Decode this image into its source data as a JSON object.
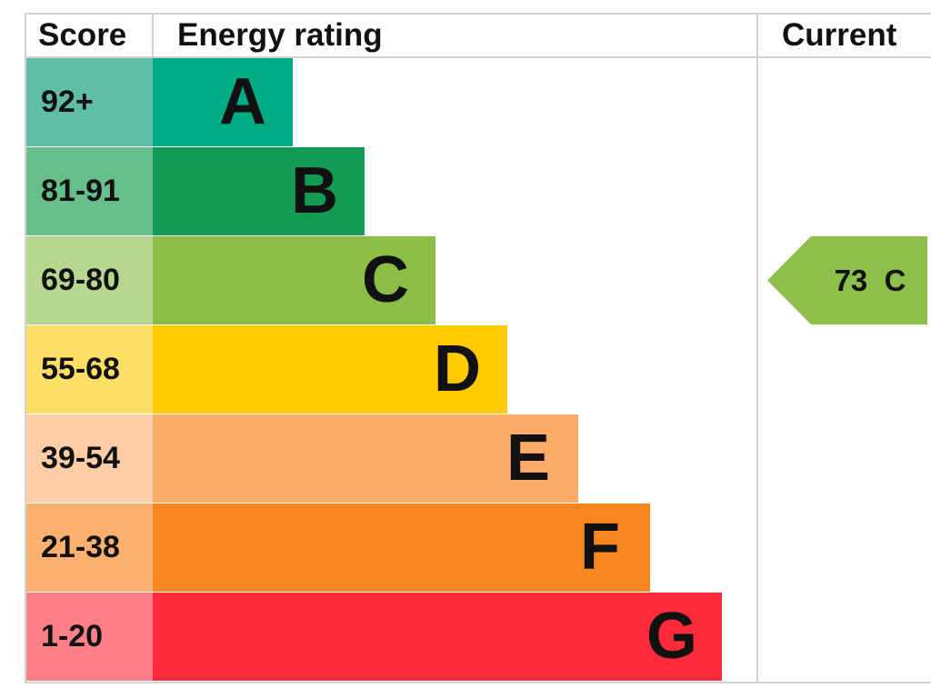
{
  "chart_data": {
    "type": "bar",
    "headers": {
      "score": "Score",
      "rating": "Energy rating",
      "current": "Current"
    },
    "bands": [
      {
        "letter": "A",
        "range": "92+",
        "color": "#00ac83",
        "score_color": "#5fbea8",
        "value": 92
      },
      {
        "letter": "B",
        "range": "81-91",
        "color": "#139b54",
        "score_color": "#66bf8a",
        "value": 81
      },
      {
        "letter": "C",
        "range": "69-80",
        "color": "#8cbd45",
        "score_color": "#b7d791",
        "value": 69
      },
      {
        "letter": "D",
        "range": "55-68",
        "color": "#ffcb00",
        "score_color": "#ffdf66",
        "value": 55
      },
      {
        "letter": "E",
        "range": "39-54",
        "color": "#fdac67",
        "score_color": "#fdcda5",
        "value": 39
      },
      {
        "letter": "F",
        "range": "21-38",
        "color": "#f8861e",
        "score_color": "#fbb070",
        "value": 21
      },
      {
        "letter": "G",
        "range": "1-20",
        "color": "#fe2b3a",
        "score_color": "#fe7f88",
        "value": 1
      }
    ],
    "current": {
      "score": "73",
      "letter": "C",
      "band": "C",
      "color": "#8cc04a",
      "text": "73  C"
    }
  }
}
